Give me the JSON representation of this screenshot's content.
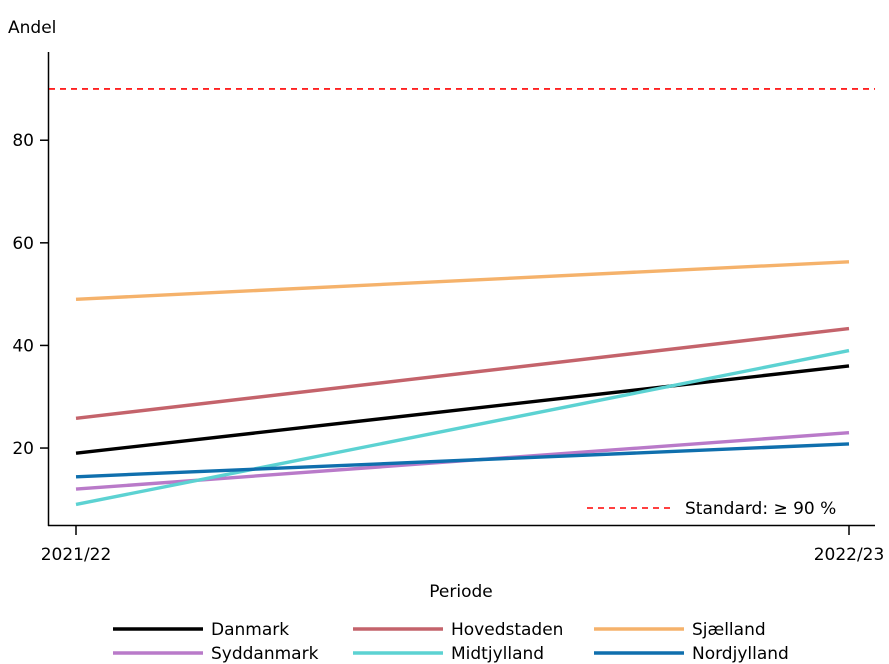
{
  "chart_data": {
    "type": "line",
    "ylabel": "Andel",
    "xlabel": "Periode",
    "categories": [
      "2021/22",
      "2022/23"
    ],
    "ylim": [
      5,
      97
    ],
    "yticks": [
      20,
      40,
      60,
      80
    ],
    "grid": false,
    "legend_position": "bottom",
    "series": [
      {
        "name": "Danmark",
        "values": [
          19,
          36
        ],
        "color": "#000000"
      },
      {
        "name": "Hovedstaden",
        "values": [
          25.8,
          43.3
        ],
        "color": "#c4636b"
      },
      {
        "name": "Sjælland",
        "values": [
          49,
          56.3
        ],
        "color": "#f5b26b"
      },
      {
        "name": "Syddanmark",
        "values": [
          12,
          23
        ],
        "color": "#b97ac9"
      },
      {
        "name": "Midtjylland",
        "values": [
          9,
          39
        ],
        "color": "#5cd2d2"
      },
      {
        "name": "Nordjylland",
        "values": [
          14.4,
          20.8
        ],
        "color": "#0f6fad"
      }
    ],
    "reference": {
      "label": "Standard: ≥ 90 %",
      "value": 90,
      "color": "#ff0000"
    }
  }
}
